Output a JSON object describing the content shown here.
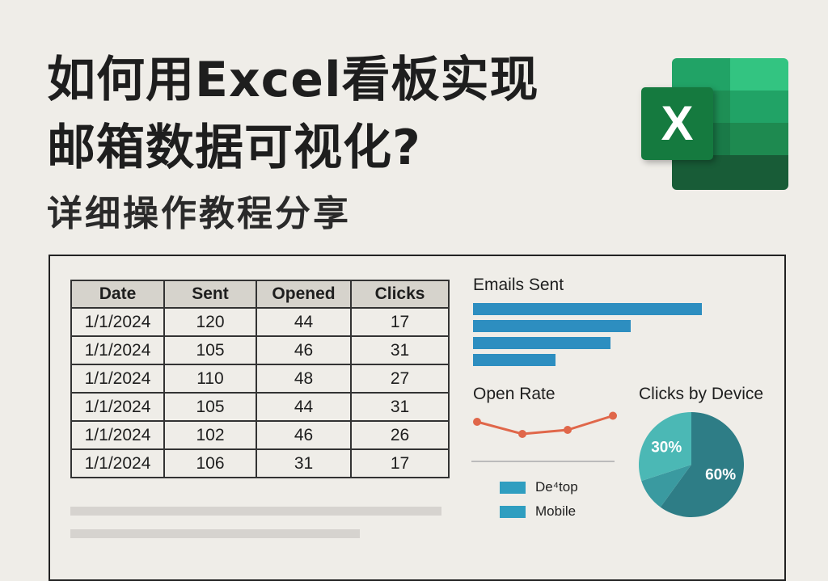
{
  "title": {
    "line1": "如何用Excel看板实现",
    "line2": "邮箱数据可视化?",
    "subtitle": "详细操作教程分享"
  },
  "logo": {
    "letter": "X",
    "colors": [
      "#1f7244",
      "#21a366",
      "#33c481",
      "#185c37"
    ]
  },
  "table": {
    "headers": [
      "Date",
      "Sent",
      "Opened",
      "Clicks"
    ],
    "rows": [
      [
        "1/1/2024",
        "120",
        "44",
        "17"
      ],
      [
        "1/1/2024",
        "105",
        "46",
        "31"
      ],
      [
        "1/1/2024",
        "110",
        "48",
        "27"
      ],
      [
        "1/1/2024",
        "105",
        "44",
        "31"
      ],
      [
        "1/1/2024",
        "102",
        "46",
        "26"
      ],
      [
        "1/1/2024",
        "106",
        "31",
        "17"
      ]
    ]
  },
  "emails_sent": {
    "title": "Emails Sent",
    "values": [
      100,
      69,
      60,
      36
    ],
    "color": "#2d8ec0"
  },
  "open_rate": {
    "title": "Open Rate",
    "values": [
      4,
      1,
      2,
      5.5
    ],
    "color": "#e0674a"
  },
  "legend": [
    {
      "label": "De⁴top",
      "color": "#2f9ec0"
    },
    {
      "label": "Mobile",
      "color": "#2f9ec0"
    }
  ],
  "clicks_by_device": {
    "title": "Clicks by Device",
    "slices": [
      {
        "value": 60,
        "label": "60%",
        "color": "#2e7d86"
      },
      {
        "value": 10,
        "label": "",
        "color": "#3a9aa0"
      },
      {
        "value": 30,
        "label": "30%",
        "color": "#4bb8b5"
      }
    ]
  }
}
